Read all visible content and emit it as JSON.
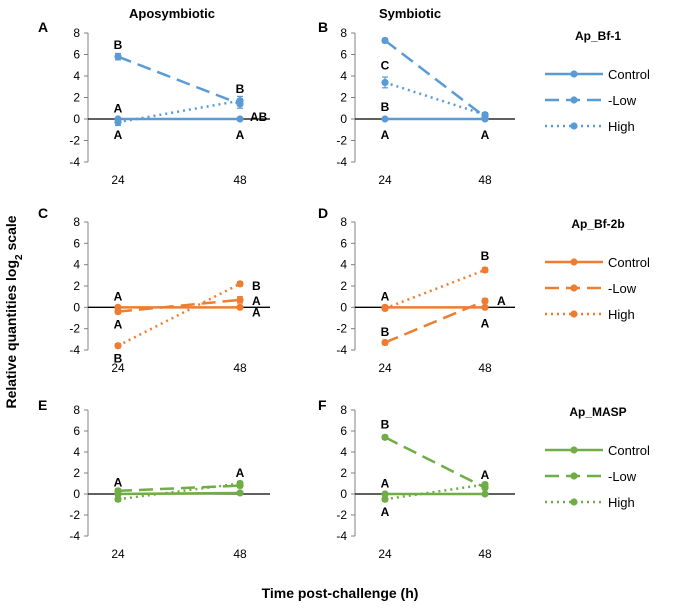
{
  "figure": {
    "column_titles": [
      "Aposymbiotic",
      "Symbiotic"
    ],
    "ylabel_main": "Relative quantities log",
    "ylabel_sub": "2",
    "ylabel_tail": " scale",
    "xlabel": "Time post-challenge (h)"
  },
  "chart_data": [
    {
      "panel": "A",
      "type": "line",
      "condition": "Aposymbiotic",
      "color": "#5b9bd5",
      "x": [
        24,
        48
      ],
      "ylim": [
        -4,
        8
      ],
      "yticks": [
        -4,
        -2,
        0,
        2,
        4,
        6,
        8
      ],
      "series": [
        {
          "name": "Control",
          "values": [
            0,
            0
          ],
          "letters": [
            "",
            "A"
          ],
          "err": [
            0,
            0
          ]
        },
        {
          "name": "Low",
          "values": [
            5.8,
            1.4
          ],
          "letters": [
            "B",
            "AB"
          ],
          "err": [
            0.3,
            0.4
          ]
        },
        {
          "name": "High",
          "values": [
            -0.3,
            1.7
          ],
          "letters": [
            "A",
            "B"
          ],
          "err": [
            0.3,
            0.4
          ]
        }
      ],
      "annotations": [
        {
          "text": "B",
          "x": 24,
          "y": 6.9
        },
        {
          "text": "A",
          "x": 24,
          "y": 1.0
        },
        {
          "text": "A",
          "x": 24,
          "y": -1.5
        },
        {
          "text": "B",
          "x": 48,
          "y": 2.8
        },
        {
          "text": "AB",
          "x": 48,
          "y": 0.2,
          "dx": 10
        },
        {
          "text": "A",
          "x": 48,
          "y": -1.5
        }
      ]
    },
    {
      "panel": "B",
      "type": "line",
      "condition": "Symbiotic",
      "color": "#5b9bd5",
      "gene": "Ap_Bf-1",
      "x": [
        24,
        48
      ],
      "ylim": [
        -4,
        8
      ],
      "yticks": [
        -4,
        -2,
        0,
        2,
        4,
        6,
        8
      ],
      "series": [
        {
          "name": "Control",
          "values": [
            0,
            0
          ],
          "letters": [
            "A",
            "A"
          ],
          "err": [
            0,
            0
          ]
        },
        {
          "name": "Low",
          "values": [
            7.3,
            0.2
          ],
          "letters": [
            "C",
            ""
          ],
          "err": [
            0.2,
            0.2
          ]
        },
        {
          "name": "High",
          "values": [
            3.4,
            0.4
          ],
          "letters": [
            "B",
            ""
          ],
          "err": [
            0.5,
            0.2
          ]
        }
      ],
      "annotations": [
        {
          "text": "C",
          "x": 24,
          "y": 5.0
        },
        {
          "text": "B",
          "x": 24,
          "y": 1.1
        },
        {
          "text": "A",
          "x": 24,
          "y": -1.5
        },
        {
          "text": "A",
          "x": 48,
          "y": -1.5
        }
      ]
    },
    {
      "panel": "C",
      "type": "line",
      "condition": "Aposymbiotic",
      "color": "#ed7d31",
      "x": [
        24,
        48
      ],
      "ylim": [
        -4,
        8
      ],
      "yticks": [
        -4,
        -2,
        0,
        2,
        4,
        6,
        8
      ],
      "series": [
        {
          "name": "Control",
          "values": [
            0,
            0
          ],
          "letters": [
            "A",
            "A"
          ],
          "err": [
            0,
            0
          ]
        },
        {
          "name": "Low",
          "values": [
            -0.4,
            0.7
          ],
          "letters": [
            "A",
            "A"
          ],
          "err": [
            0.2,
            0.3
          ]
        },
        {
          "name": "High",
          "values": [
            -3.6,
            2.2
          ],
          "letters": [
            "B",
            "B"
          ],
          "err": [
            0.2,
            0.2
          ]
        }
      ],
      "annotations": [
        {
          "text": "A",
          "x": 24,
          "y": 1.0
        },
        {
          "text": "A",
          "x": 24,
          "y": -1.6
        },
        {
          "text": "B",
          "x": 24,
          "y": -4.8
        },
        {
          "text": "B",
          "x": 48,
          "y": 2.0,
          "dx": 12
        },
        {
          "text": "A",
          "x": 48,
          "y": 0.6,
          "dx": 12
        },
        {
          "text": "A",
          "x": 48,
          "y": -0.5,
          "dx": 12
        }
      ]
    },
    {
      "panel": "D",
      "type": "line",
      "condition": "Symbiotic",
      "color": "#ed7d31",
      "gene": "Ap_Bf-2b",
      "x": [
        24,
        48
      ],
      "ylim": [
        -4,
        8
      ],
      "yticks": [
        -4,
        -2,
        0,
        2,
        4,
        6,
        8
      ],
      "series": [
        {
          "name": "Control",
          "values": [
            0,
            0
          ],
          "letters": [
            "A",
            "A"
          ],
          "err": [
            0,
            0
          ]
        },
        {
          "name": "Low",
          "values": [
            -3.3,
            0.6
          ],
          "letters": [
            "B",
            "A"
          ],
          "err": [
            0.2,
            0.2
          ]
        },
        {
          "name": "High",
          "values": [
            -0.1,
            3.5
          ],
          "letters": [
            "A",
            "B"
          ],
          "err": [
            0.2,
            0.2
          ]
        }
      ],
      "annotations": [
        {
          "text": "A",
          "x": 24,
          "y": 1.0
        },
        {
          "text": "B",
          "x": 24,
          "y": -2.3
        },
        {
          "text": "B",
          "x": 48,
          "y": 4.8
        },
        {
          "text": "A",
          "x": 48,
          "y": 0.6,
          "dx": 12
        },
        {
          "text": "A",
          "x": 48,
          "y": -1.5
        }
      ]
    },
    {
      "panel": "E",
      "type": "line",
      "condition": "Aposymbiotic",
      "color": "#70ad47",
      "x": [
        24,
        48
      ],
      "ylim": [
        -4,
        8
      ],
      "yticks": [
        -4,
        -2,
        0,
        2,
        4,
        6,
        8
      ],
      "series": [
        {
          "name": "Control",
          "values": [
            0,
            0.1
          ],
          "letters": [
            "",
            ""
          ],
          "err": [
            0,
            0
          ]
        },
        {
          "name": "Low",
          "values": [
            0.3,
            0.8
          ],
          "letters": [
            "",
            ""
          ],
          "err": [
            0.2,
            0.2
          ]
        },
        {
          "name": "High",
          "values": [
            -0.5,
            1.0
          ],
          "letters": [
            "",
            ""
          ],
          "err": [
            0.2,
            0.2
          ]
        }
      ],
      "annotations": [
        {
          "text": "A",
          "x": 24,
          "y": 1.1
        },
        {
          "text": "A",
          "x": 48,
          "y": 2.0
        }
      ]
    },
    {
      "panel": "F",
      "type": "line",
      "condition": "Symbiotic",
      "color": "#70ad47",
      "gene": "Ap_MASP",
      "x": [
        24,
        48
      ],
      "ylim": [
        -4,
        8
      ],
      "yticks": [
        -4,
        -2,
        0,
        2,
        4,
        6,
        8
      ],
      "series": [
        {
          "name": "Control",
          "values": [
            0,
            0
          ],
          "letters": [
            "",
            ""
          ],
          "err": [
            0,
            0
          ]
        },
        {
          "name": "Low",
          "values": [
            5.4,
            0.6
          ],
          "letters": [
            "",
            ""
          ],
          "err": [
            0.2,
            0.2
          ]
        },
        {
          "name": "High",
          "values": [
            -0.5,
            0.9
          ],
          "letters": [
            "",
            ""
          ],
          "err": [
            0.2,
            0.2
          ]
        }
      ],
      "annotations": [
        {
          "text": "B",
          "x": 24,
          "y": 6.6
        },
        {
          "text": "A",
          "x": 24,
          "y": 1.0
        },
        {
          "text": "A",
          "x": 24,
          "y": -1.7
        },
        {
          "text": "A",
          "x": 48,
          "y": 1.8
        }
      ]
    }
  ],
  "legends": [
    {
      "gene": "Ap_Bf-1",
      "color": "#5b9bd5",
      "entries": [
        "Control",
        "Low",
        "High"
      ]
    },
    {
      "gene": "Ap_Bf-2b",
      "color": "#ed7d31",
      "entries": [
        "Control",
        "Low",
        "High"
      ]
    },
    {
      "gene": "Ap_MASP",
      "color": "#70ad47",
      "entries": [
        "Control",
        "Low",
        "High"
      ]
    }
  ]
}
